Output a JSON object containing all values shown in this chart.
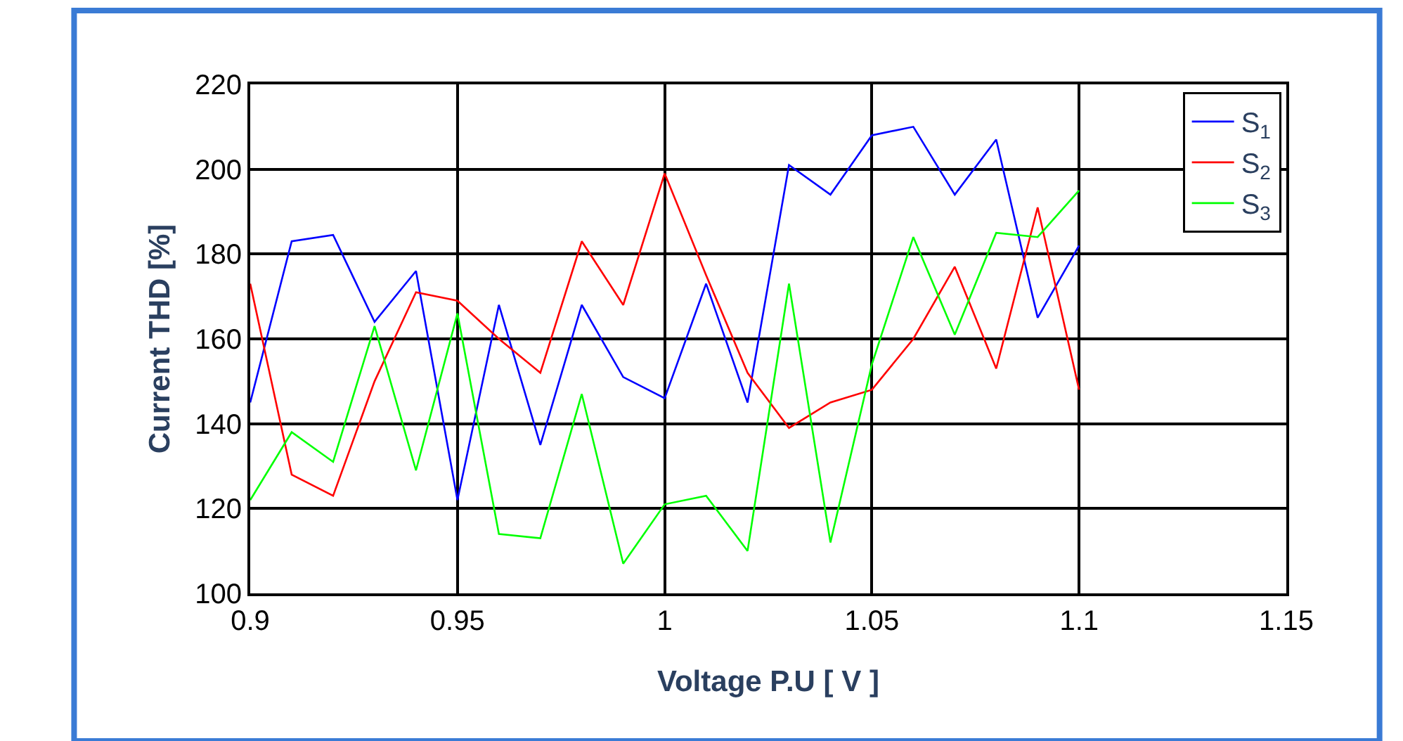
{
  "chart_data": {
    "type": "line",
    "xlabel": "Voltage P.U [ V ]",
    "ylabel": "Current THD [%]",
    "x": [
      0.9,
      0.91,
      0.92,
      0.93,
      0.94,
      0.95,
      0.96,
      0.97,
      0.98,
      0.99,
      1.0,
      1.01,
      1.02,
      1.03,
      1.04,
      1.05,
      1.06,
      1.07,
      1.08,
      1.09,
      1.1
    ],
    "series": [
      {
        "name": "S$_{1}$",
        "color": "#0000ff",
        "values": [
          145,
          183,
          184.5,
          164,
          176,
          122,
          168,
          135,
          168,
          151,
          146,
          173,
          145,
          201,
          194,
          208,
          210,
          194,
          207,
          165,
          182
        ]
      },
      {
        "name": "S$_{2}$",
        "color": "#ff0000",
        "values": [
          173,
          128,
          123,
          150,
          171,
          169,
          160,
          152,
          183,
          168,
          199,
          175,
          152,
          139,
          145,
          148,
          160,
          177,
          153,
          191,
          148
        ]
      },
      {
        "name": "S$_{3}$",
        "color": "#00ff00",
        "values": [
          122,
          138,
          131,
          163,
          129,
          166,
          114,
          113,
          147,
          107,
          121,
          123,
          110,
          173,
          112,
          154,
          184,
          161,
          185,
          184,
          195
        ]
      }
    ],
    "xlim": [
      0.9,
      1.15
    ],
    "xticks": [
      0.9,
      0.95,
      1,
      1.05,
      1.1,
      1.15
    ],
    "ylim": [
      100,
      220
    ],
    "yticks": [
      100,
      120,
      140,
      160,
      180,
      200,
      220
    ],
    "grid": true,
    "legend": "top right",
    "marker": "none",
    "line_style": "solid"
  }
}
